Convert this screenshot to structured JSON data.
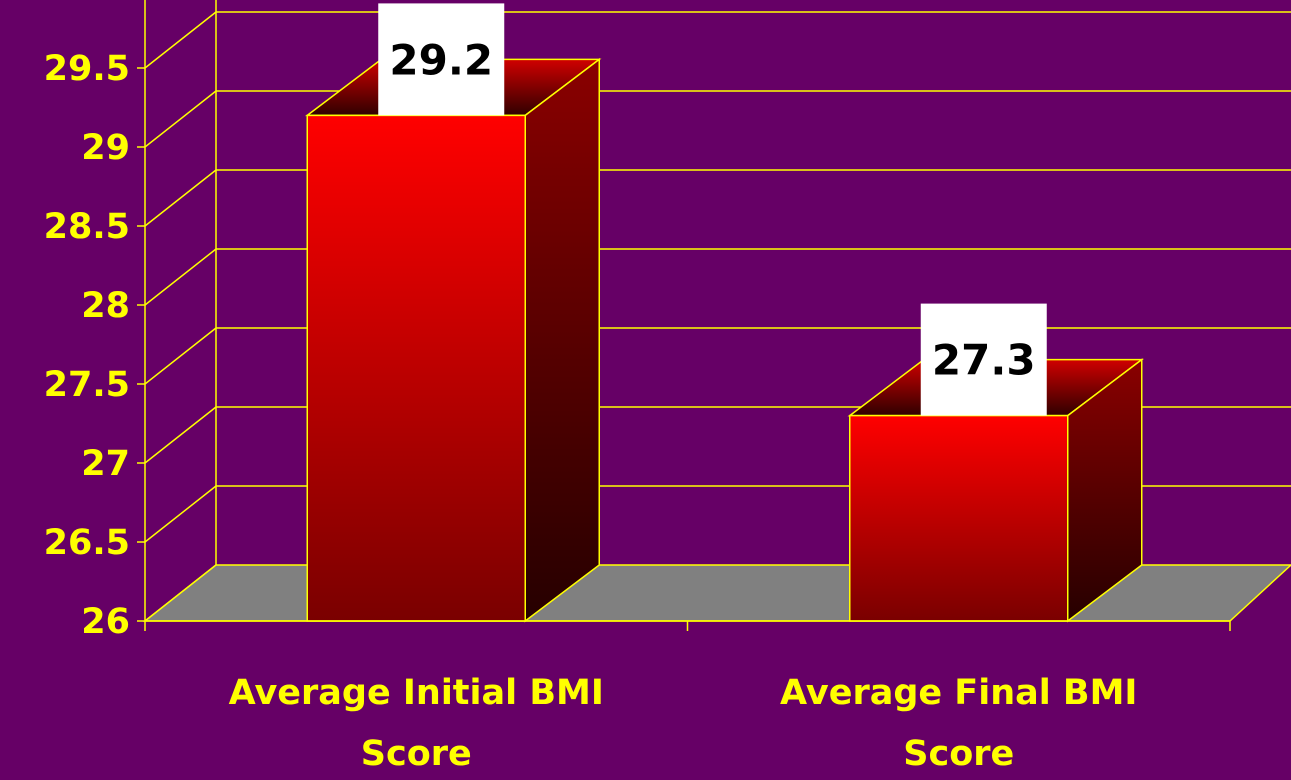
{
  "colors": {
    "background": "#660066",
    "grid": "#ffff00",
    "floor": "#808080",
    "bar_front_top": "#ff0000",
    "bar_front_bottom": "#7a0000",
    "tick_text": "#ffff00",
    "label_box": "#ffffff",
    "label_text": "#000000"
  },
  "chart_data": {
    "type": "bar",
    "style": "3d-column",
    "categories": [
      "Average Initial BMI Score",
      "Average Final BMI Score"
    ],
    "category_lines": [
      [
        "Average Initial BMI",
        "Score"
      ],
      [
        "Average Final BMI",
        "Score"
      ]
    ],
    "values": [
      29.2,
      27.3
    ],
    "data_labels": [
      "29.2",
      "27.3"
    ],
    "yticks": [
      "26",
      "26.5",
      "27",
      "27.5",
      "28",
      "28.5",
      "29",
      "29.5"
    ],
    "ylim": [
      26,
      29.5
    ],
    "grid": true,
    "legend": false,
    "title": "",
    "xlabel": "",
    "ylabel": ""
  }
}
